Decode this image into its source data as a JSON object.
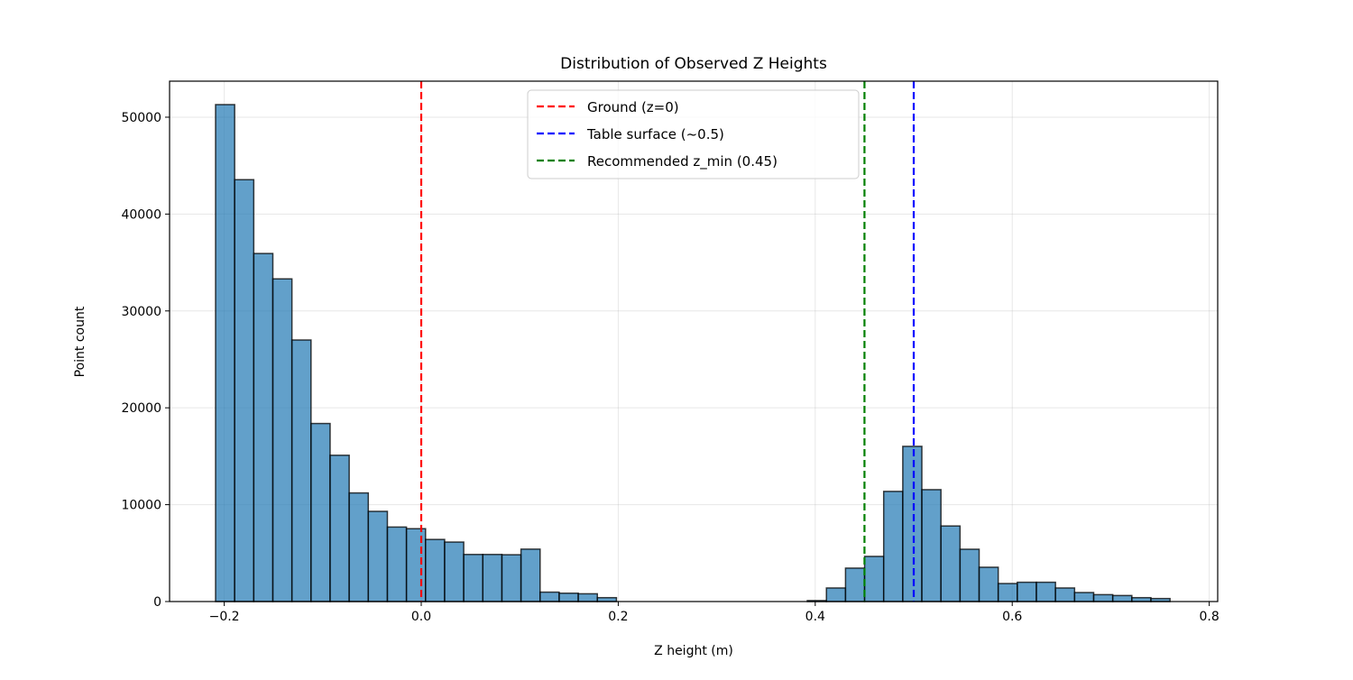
{
  "chart_data": {
    "type": "bar",
    "title": "Distribution of Observed Z Heights",
    "xlabel": "Z height (m)",
    "ylabel": "Point count",
    "xlim": [
      -0.2555,
      0.8086
    ],
    "ylim": [
      0,
      53720
    ],
    "xticks": [
      -0.2,
      0.0,
      0.2,
      0.4,
      0.6,
      0.8
    ],
    "xtick_labels": [
      "−0.2",
      "0.0",
      "0.2",
      "0.4",
      "0.6",
      "0.8"
    ],
    "yticks": [
      0,
      10000,
      20000,
      30000,
      40000,
      50000
    ],
    "ytick_labels": [
      "0",
      "10000",
      "20000",
      "30000",
      "40000",
      "50000"
    ],
    "grid": true,
    "bin_start": -0.2088,
    "bin_width": 0.01938,
    "counts": [
      51300,
      43550,
      35930,
      33310,
      27000,
      18380,
      15100,
      11210,
      9310,
      7690,
      7520,
      6410,
      6140,
      4860,
      4860,
      4830,
      5410,
      970,
      860,
      800,
      400,
      0,
      0,
      0,
      0,
      0,
      0,
      0,
      0,
      0,
      0,
      100,
      1400,
      3450,
      4660,
      11370,
      16020,
      11550,
      7800,
      5400,
      3540,
      1860,
      1990,
      1990,
      1400,
      930,
      710,
      620,
      400,
      310
    ],
    "bar_color": "#1f77b4",
    "vlines": [
      {
        "x": 0.0,
        "label": "Ground (z=0)",
        "color": "#ff0000"
      },
      {
        "x": 0.5,
        "label": "Table surface (~0.5)",
        "color": "#0000ff"
      },
      {
        "x": 0.45,
        "label": "Recommended z_min (0.45)",
        "color": "#008000"
      }
    ],
    "legend_position": "upper-center"
  }
}
